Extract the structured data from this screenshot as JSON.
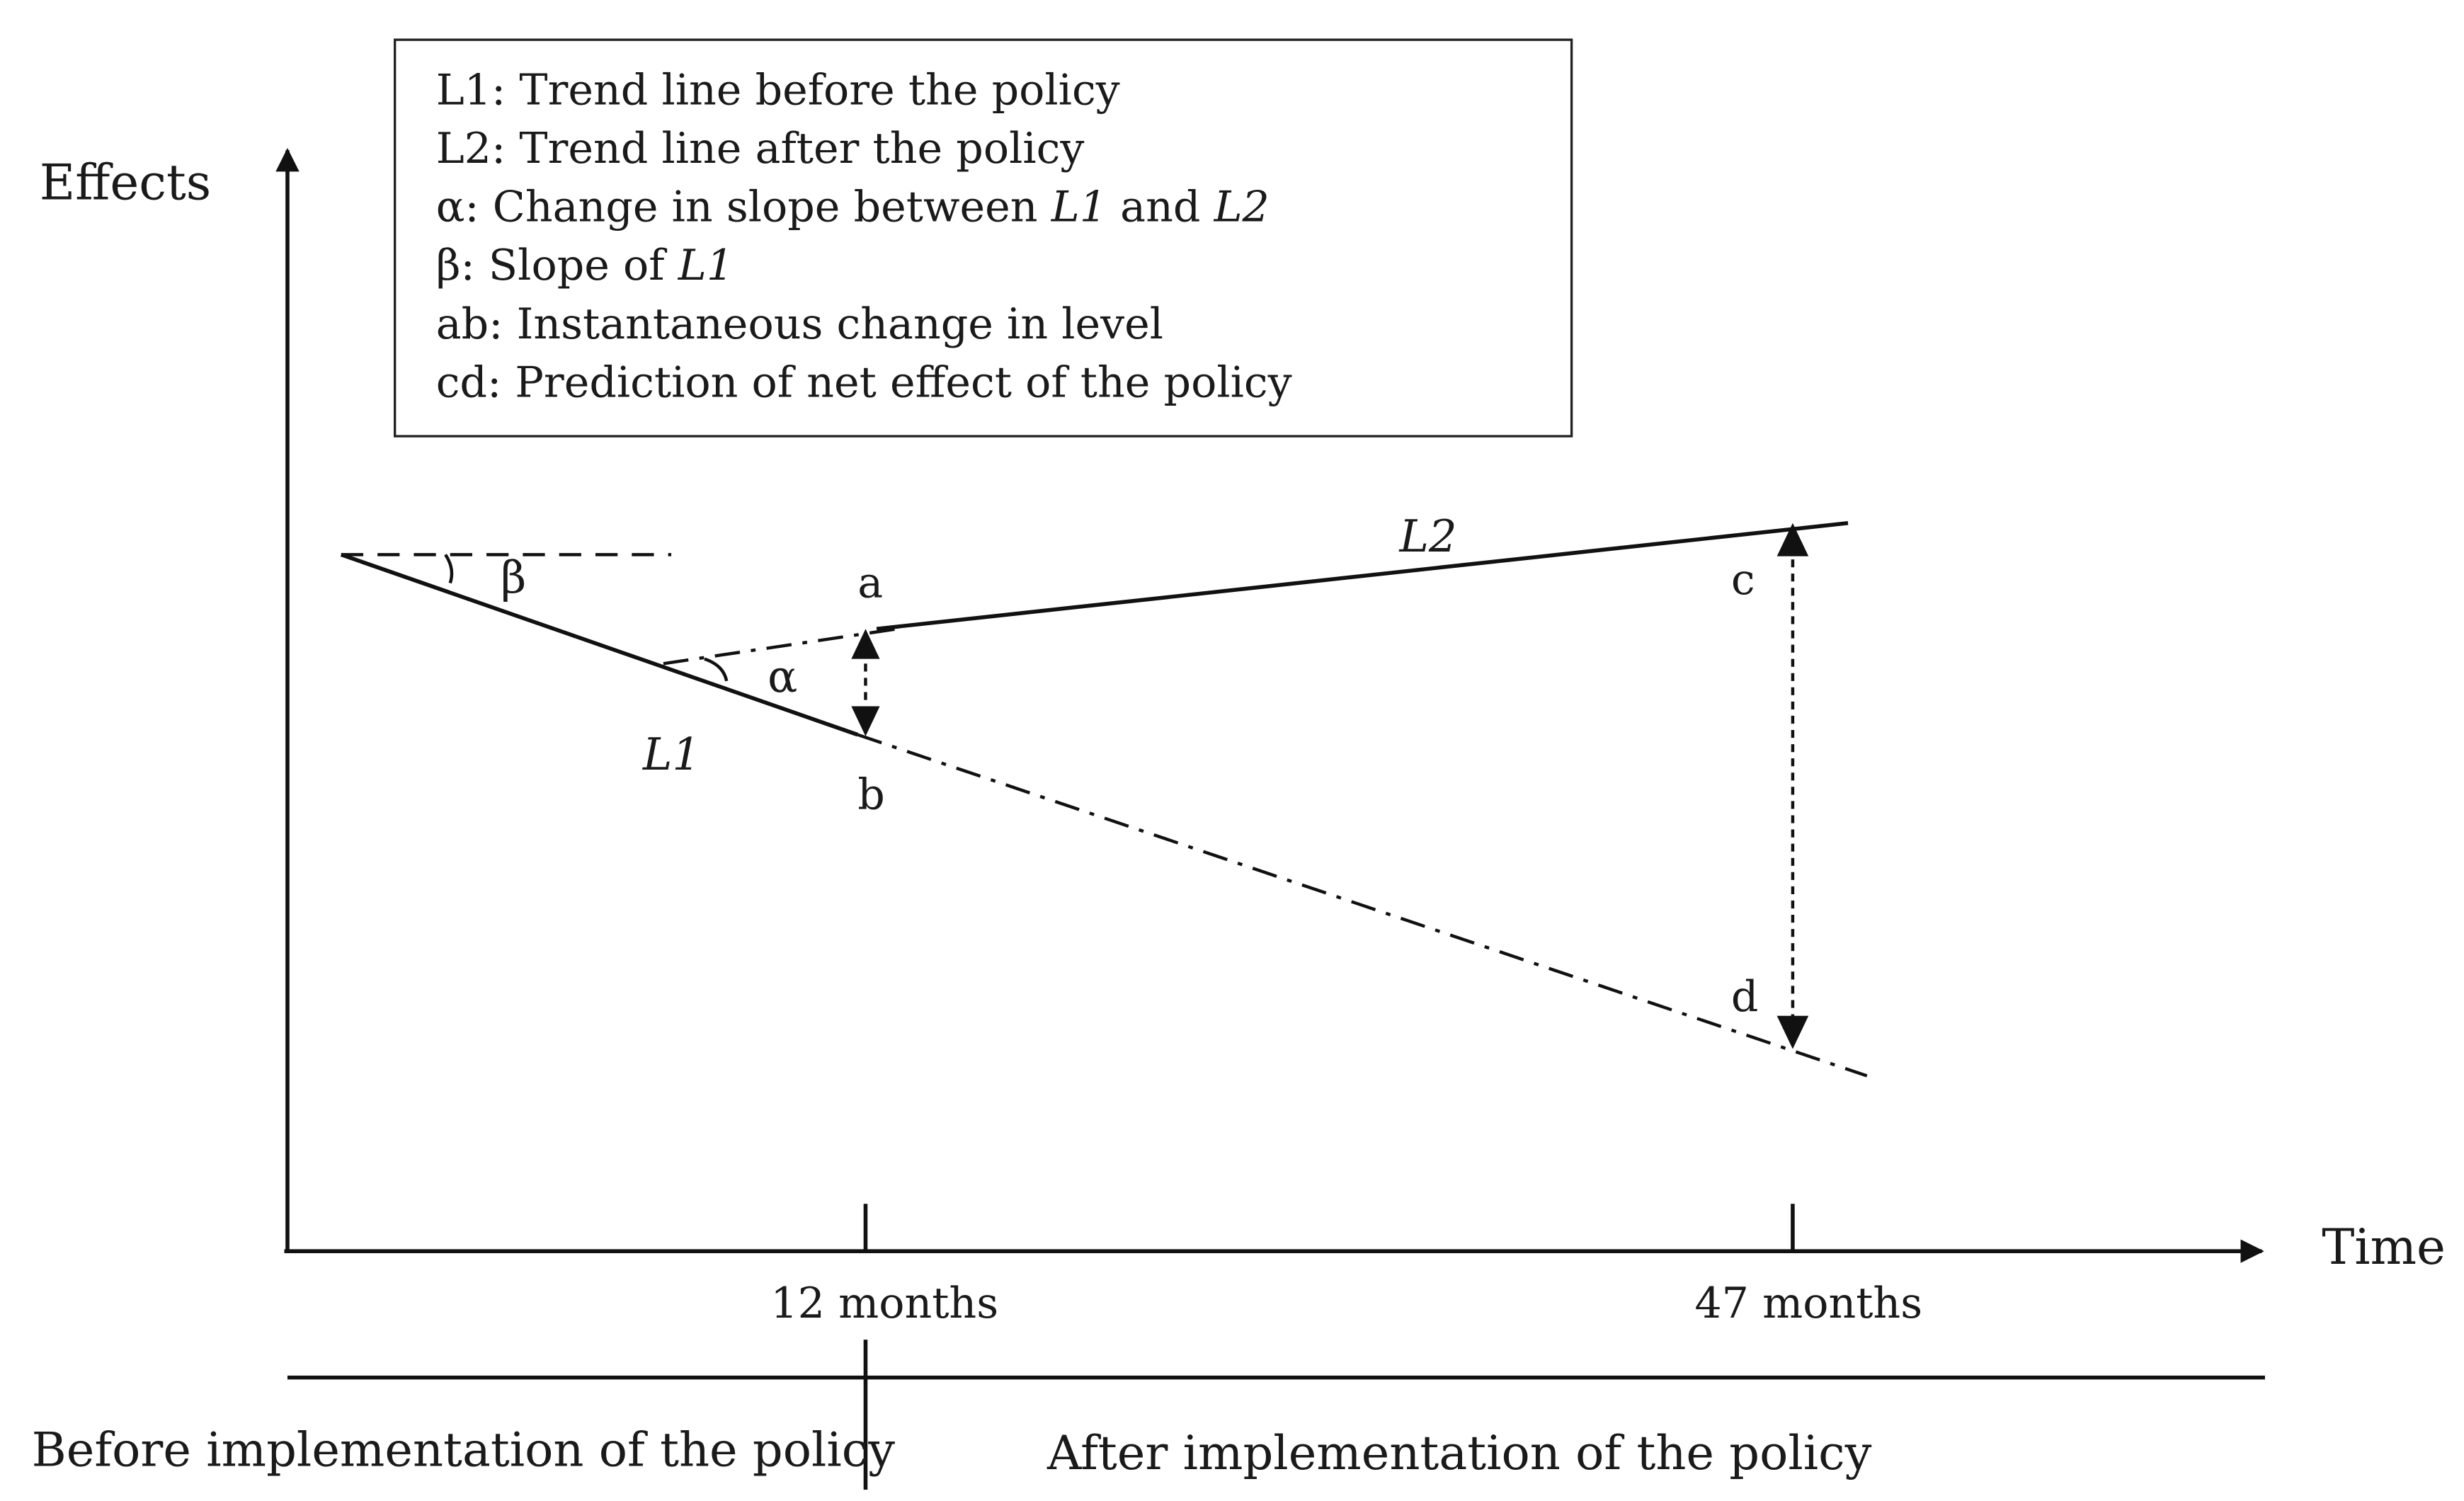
{
  "legend": {
    "line1": "L1: Trend line before the policy",
    "line2": "L2: Trend line after the policy",
    "line3_prefix": "α: Change in slope between ",
    "line3_l1": "L1",
    "line3_and": " and ",
    "line3_l2": "L2",
    "line4_prefix": "β: Slope of ",
    "line4_l1": "L1",
    "line5": "ab: Instantaneous change in level",
    "line6": "cd: Prediction of net effect of the policy"
  },
  "axes": {
    "y_label": "Effects",
    "x_label": "Time",
    "tick1": "12 months",
    "tick2": "47 months"
  },
  "labels": {
    "L1": "L1",
    "L2": "L2",
    "beta": "β",
    "alpha": "α",
    "a": "a",
    "b": "b",
    "c": "c",
    "d": "d"
  },
  "periods": {
    "before": "Before implementation of the policy",
    "after": "After implementation of the policy"
  }
}
